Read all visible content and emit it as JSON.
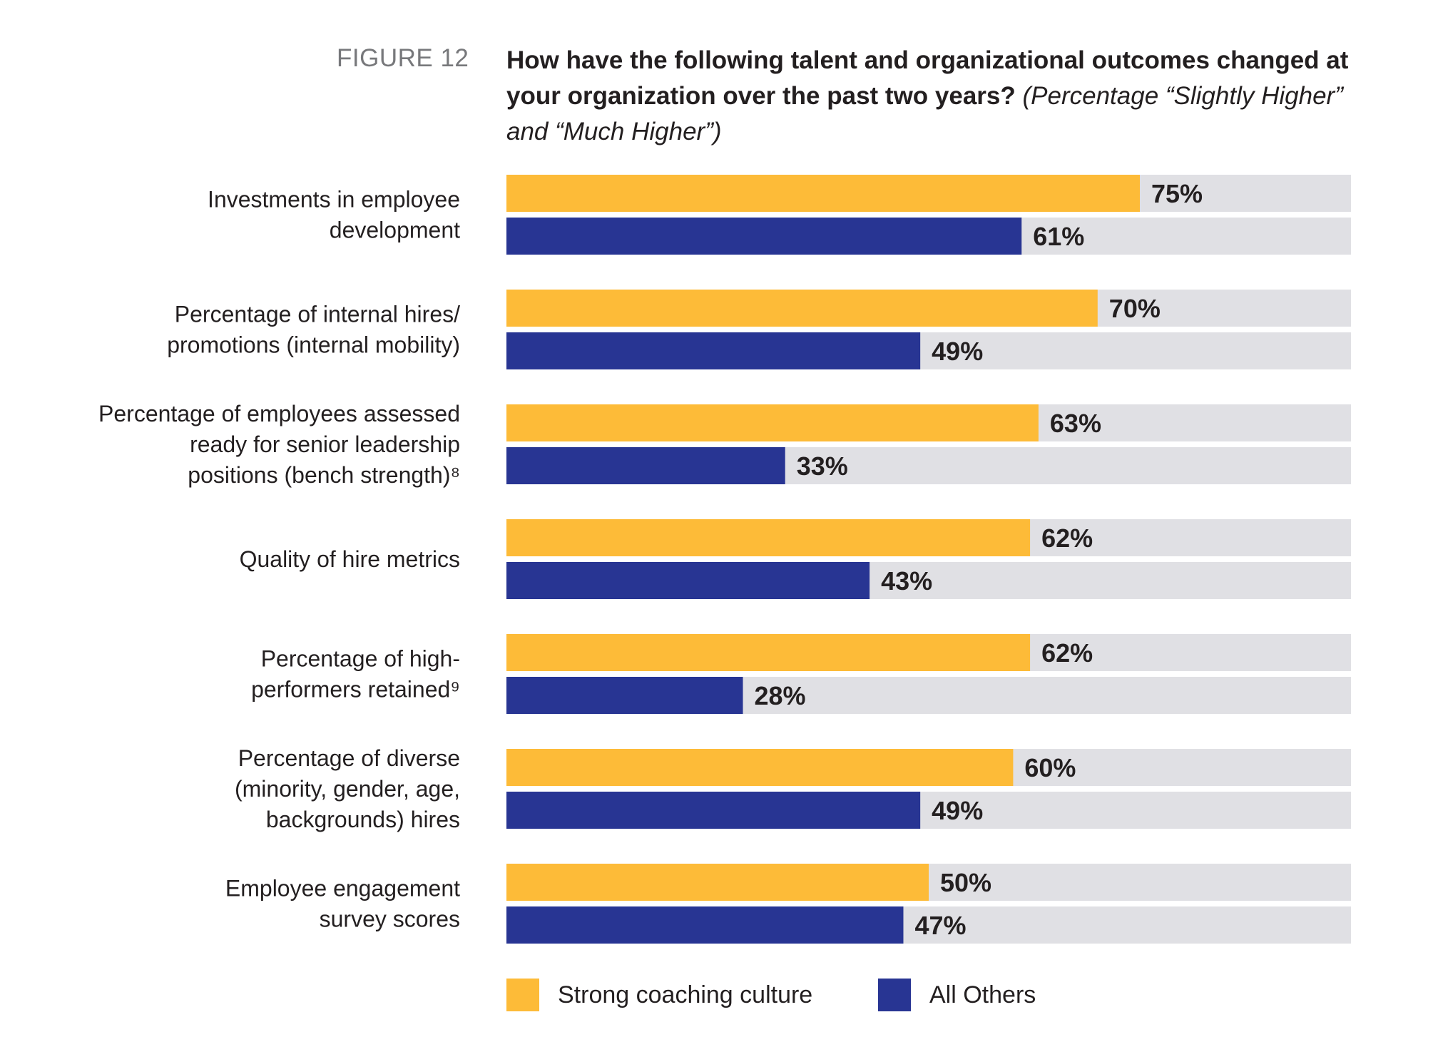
{
  "figure_label": "FIGURE 12",
  "title_bold": "How have the following talent and organizational outcomes changed at your organization over the past two years?",
  "title_italic": "(Percentage “Slightly Higher” and “Much Higher”)",
  "colors": {
    "strong": "#fdbb38",
    "others": "#283593",
    "track": "#e0e0e4",
    "text": "#231f20"
  },
  "chart_data": {
    "type": "bar",
    "orientation": "horizontal",
    "xlim": [
      0,
      100
    ],
    "categories": [
      [
        "Investments in employee",
        "development"
      ],
      [
        "Percentage of internal hires/",
        "promotions (internal mobility)"
      ],
      [
        "Percentage of employees assessed",
        "ready for senior leadership",
        "positions (bench strength)⁸"
      ],
      [
        "Quality of hire metrics"
      ],
      [
        "Percentage of high-",
        "performers retained⁹"
      ],
      [
        "Percentage of diverse",
        "(minority, gender, age,",
        "backgrounds) hires"
      ],
      [
        "Employee engagement",
        "survey scores"
      ]
    ],
    "series": [
      {
        "name": "Strong coaching culture",
        "values": [
          75,
          70,
          63,
          62,
          62,
          60,
          50
        ],
        "labels": [
          "75%",
          "70%",
          "63%",
          "62%",
          "62%",
          "60%",
          "50%"
        ]
      },
      {
        "name": "All Others",
        "values": [
          61,
          49,
          33,
          43,
          28,
          49,
          47
        ],
        "labels": [
          "61%",
          "49%",
          "33%",
          "43%",
          "28%",
          "49%",
          "47%"
        ]
      }
    ],
    "legend": "bottom"
  }
}
